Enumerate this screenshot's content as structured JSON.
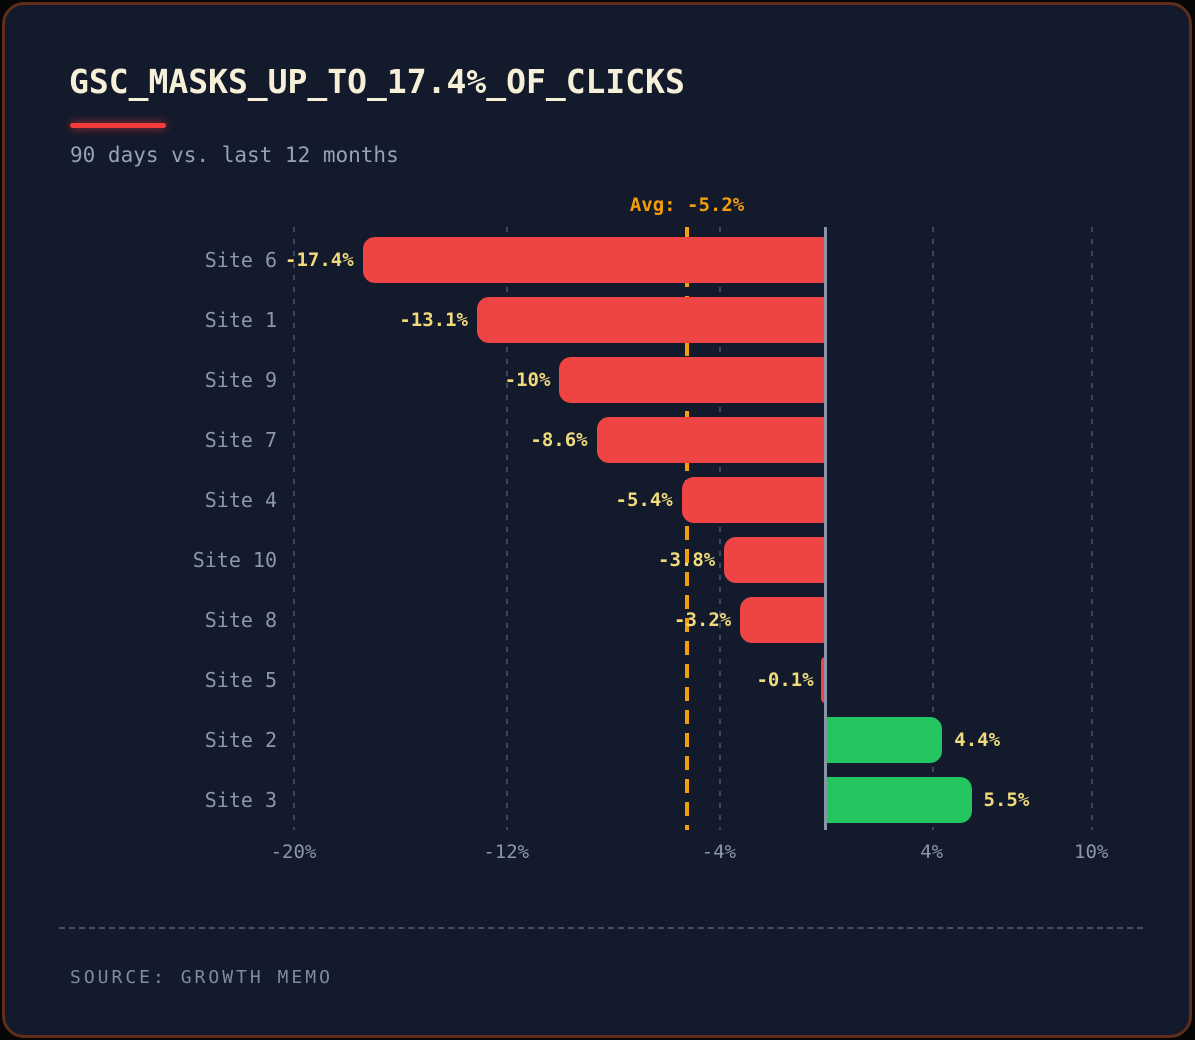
{
  "card": {
    "title": "GSC_MASKS_UP_TO_17.4%_OF_CLICKS",
    "subtitle": "90 days vs. last 12 months",
    "source": "SOURCE: GROWTH MEMO"
  },
  "chart_data": {
    "type": "bar",
    "orientation": "horizontal",
    "title": "GSC_MASKS_UP_TO_17.4%_OF_CLICKS",
    "subtitle": "90 days vs. last 12 months",
    "categories": [
      "Site 6",
      "Site 1",
      "Site 9",
      "Site 7",
      "Site 4",
      "Site 10",
      "Site 8",
      "Site 5",
      "Site 2",
      "Site 3"
    ],
    "values": [
      -17.4,
      -13.1,
      -10,
      -8.6,
      -5.4,
      -3.8,
      -3.2,
      -0.1,
      4.4,
      5.5
    ],
    "value_labels": [
      "-17.4%",
      "-13.1%",
      "-10%",
      "-8.6%",
      "-5.4%",
      "-3.8%",
      "-3.2%",
      "-0.1%",
      "4.4%",
      "5.5%"
    ],
    "xlim": [
      -22.2,
      12.4
    ],
    "x_ticks": [
      {
        "value": -20,
        "label": "-20%"
      },
      {
        "value": -12,
        "label": "-12%"
      },
      {
        "value": -4,
        "label": "-4%"
      },
      {
        "value": 4,
        "label": "4%"
      },
      {
        "value": 10,
        "label": "10%"
      }
    ],
    "reference_line": {
      "value": -5.2,
      "label": "Avg: -5.2%"
    },
    "grid": "dashed-vertical",
    "legend": "none",
    "colors": {
      "negative": "#ef4444",
      "positive": "#22c55e",
      "value_label": "#f1da7c",
      "category_label": "#8c97ad",
      "tick_label": "#8c97ad",
      "grid_line": "#3c4660",
      "zero_line": "#8a94a8",
      "reference_line": "#f59e0b",
      "background": "#131a2b",
      "border": "#5e2e1b",
      "title": "#f7f0d8",
      "subtitle": "#93a3b8",
      "accent_underline": "#f43b3b",
      "source": "#7e8ba2"
    }
  }
}
